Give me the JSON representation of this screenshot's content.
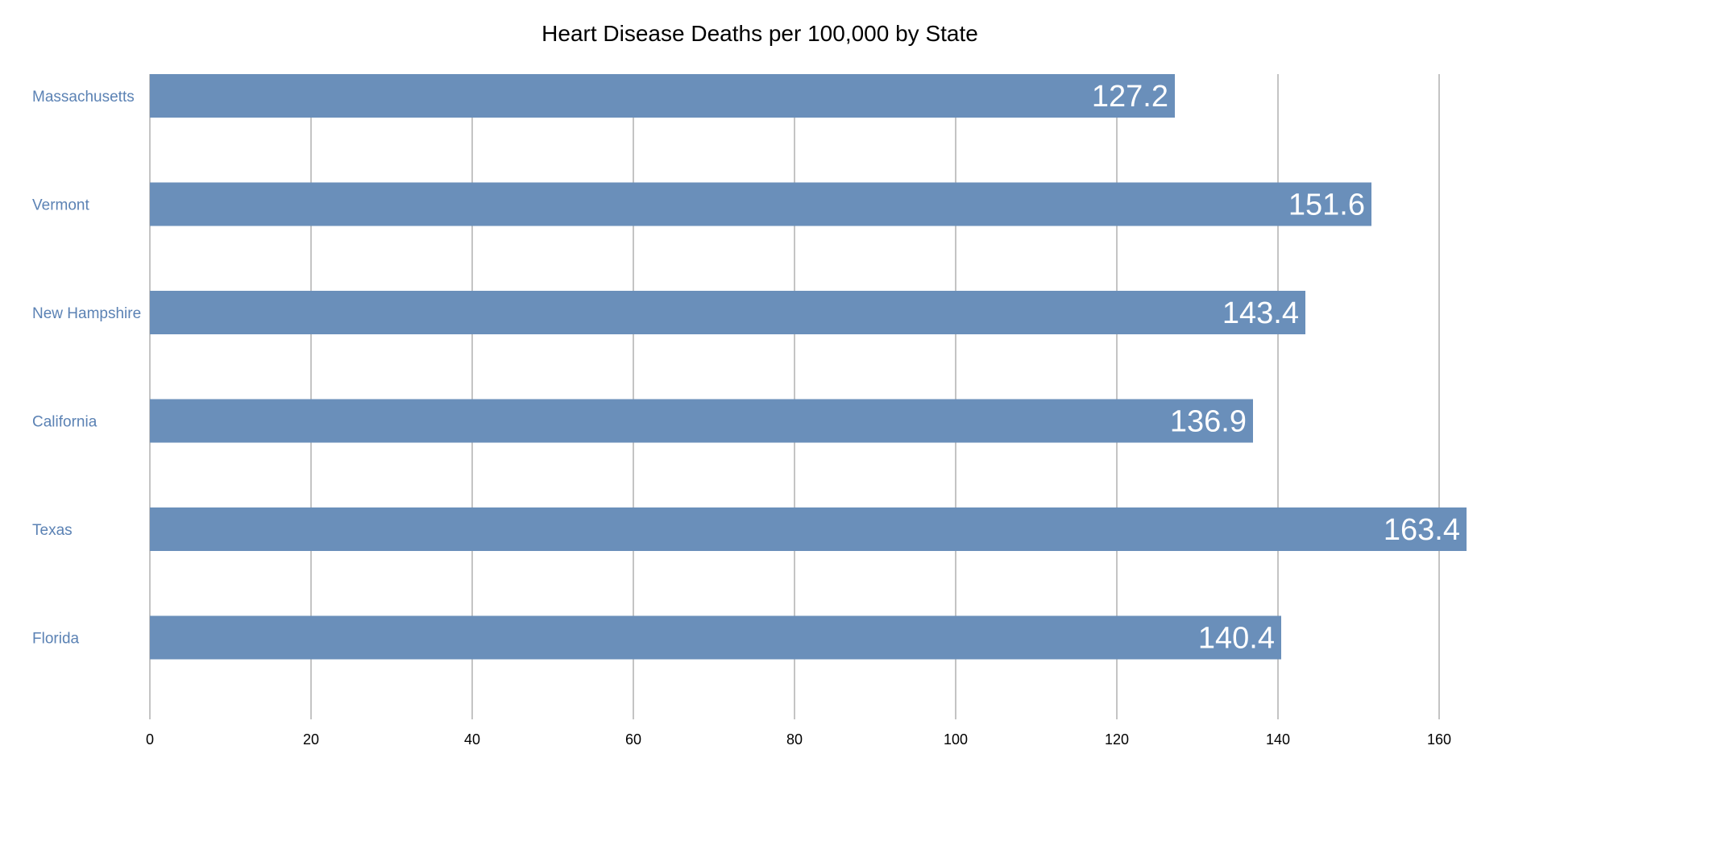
{
  "chart_data": {
    "type": "bar",
    "orientation": "horizontal",
    "title": "Heart Disease Deaths per 100,000 by State",
    "xlabel": "",
    "ylabel": "",
    "categories": [
      "Massachusetts",
      "Vermont",
      "New Hampshire",
      "California",
      "Texas",
      "Florida"
    ],
    "series": [
      {
        "values": [
          127.2,
          151.6,
          143.4,
          136.9,
          163.4,
          140.4
        ],
        "color": "#6a8fba"
      }
    ],
    "data_labels": [
      "127.2",
      "151.6",
      "143.4",
      "136.9",
      "163.4",
      "140.4"
    ],
    "xlim": [
      0,
      160
    ],
    "x_ticks": [
      0,
      20,
      40,
      60,
      80,
      100,
      120,
      140,
      160
    ],
    "x_tick_labels": [
      "0",
      "20",
      "40",
      "60",
      "80",
      "100",
      "120",
      "140",
      "160"
    ],
    "grid": true,
    "legend": "none",
    "colors": {
      "bar": "#6a8fba",
      "category_label": "#5b82b4",
      "gridline": "#c4c4c4",
      "data_label": "#ffffff"
    }
  }
}
